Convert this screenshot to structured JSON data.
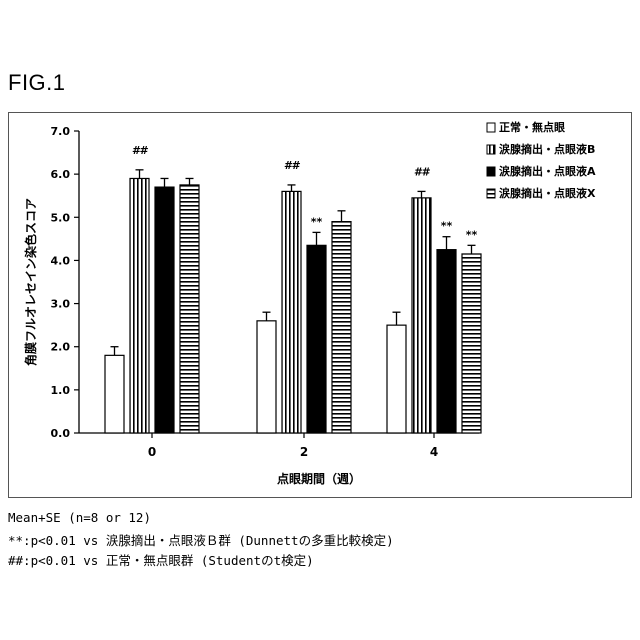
{
  "figure_label": "FIG.1",
  "notes": [
    "Mean+SE (n=8 or 12)",
    "**:p<0.01 vs 涙腺摘出・点眼液Ｂ群 (Dunnettの多重比較検定)",
    "##:p<0.01 vs 正常・無点眼群 (Studentのt検定)"
  ],
  "chart_data": {
    "type": "bar",
    "title": "",
    "xlabel": "点眼期間（週）",
    "ylabel": "角膜フルオレセイン染色スコア",
    "categories": [
      "0",
      "2",
      "4"
    ],
    "ylim": [
      0,
      7
    ],
    "yticks": [
      "0.0",
      "1.0",
      "2.0",
      "3.0",
      "4.0",
      "5.0",
      "6.0",
      "7.0"
    ],
    "grid": false,
    "legend_position": "top-right",
    "series": [
      {
        "name": "正常・無点眼",
        "pattern": "white",
        "values": [
          1.8,
          2.6,
          2.5
        ],
        "errors": [
          0.2,
          0.2,
          0.3
        ],
        "marks": [
          "",
          "",
          ""
        ]
      },
      {
        "name": "涙腺摘出・点眼液B",
        "pattern": "vertical-stripes",
        "values": [
          5.9,
          5.6,
          5.45
        ],
        "errors": [
          0.2,
          0.15,
          0.15
        ],
        "marks": [
          "##",
          "##",
          "##"
        ]
      },
      {
        "name": "涙腺摘出・点眼液A",
        "pattern": "black",
        "values": [
          5.7,
          4.35,
          4.25
        ],
        "errors": [
          0.2,
          0.3,
          0.3
        ],
        "marks": [
          "",
          "**",
          "**"
        ]
      },
      {
        "name": "涙腺摘出・点眼液X",
        "pattern": "horizontal-stripes",
        "values": [
          5.75,
          4.9,
          4.15
        ],
        "errors": [
          0.15,
          0.25,
          0.2
        ],
        "marks": [
          "",
          "",
          "**"
        ]
      }
    ]
  }
}
